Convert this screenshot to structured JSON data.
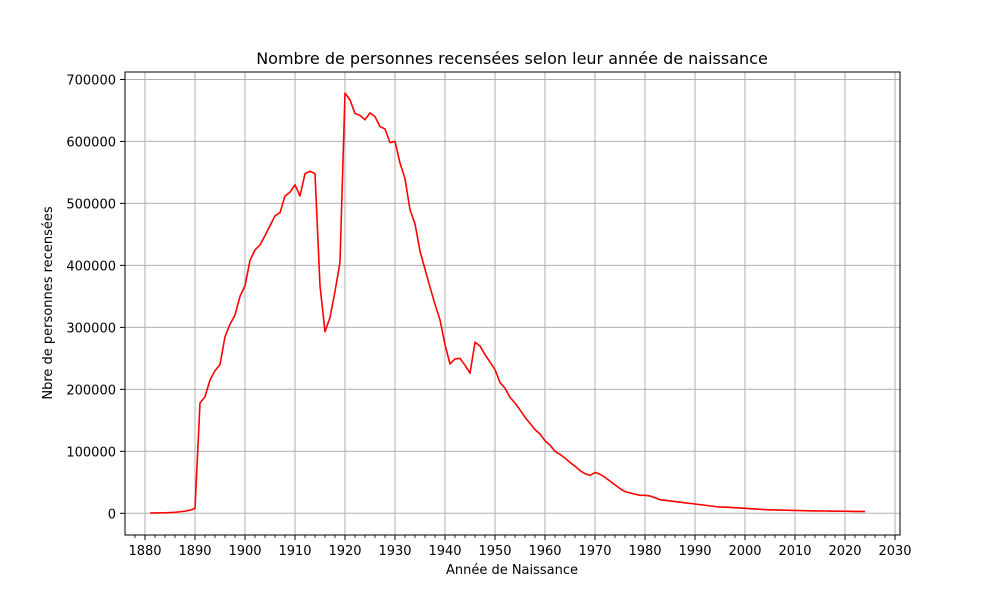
{
  "chart_data": {
    "type": "line",
    "title": "Nombre de personnes recensées selon leur année de naissance",
    "xlabel": "Année de Naissance",
    "ylabel": "Nbre de personnes recensées",
    "xlim": [
      1876,
      2031
    ],
    "ylim": [
      -35000,
      712000
    ],
    "xticks": [
      1880,
      1890,
      1900,
      1910,
      1920,
      1930,
      1940,
      1950,
      1960,
      1970,
      1980,
      1990,
      2000,
      2010,
      2020,
      2030
    ],
    "xtick_labels": [
      "1880",
      "1890",
      "1900",
      "1910",
      "1920",
      "1930",
      "1940",
      "1950",
      "1960",
      "1970",
      "1980",
      "1990",
      "2000",
      "2010",
      "2020",
      "2030"
    ],
    "yticks": [
      0,
      100000,
      200000,
      300000,
      400000,
      500000,
      600000,
      700000
    ],
    "ytick_labels": [
      "0",
      "100000",
      "200000",
      "300000",
      "400000",
      "500000",
      "600000",
      "700000"
    ],
    "grid": true,
    "line_color": "#ff0000",
    "series": [
      {
        "x": [
          1881,
          1882,
          1883,
          1884,
          1885,
          1886,
          1887,
          1888,
          1889,
          1890,
          1891,
          1892,
          1893,
          1894,
          1895,
          1896,
          1897,
          1898,
          1899,
          1900,
          1901,
          1902,
          1903,
          1904,
          1905,
          1906,
          1907,
          1908,
          1909,
          1910,
          1911,
          1912,
          1913,
          1914,
          1915,
          1916,
          1917,
          1918,
          1919,
          1920,
          1921,
          1922,
          1923,
          1924,
          1925,
          1926,
          1927,
          1928,
          1929,
          1930,
          1931,
          1932,
          1933,
          1934,
          1935,
          1936,
          1937,
          1938,
          1939,
          1940,
          1941,
          1942,
          1943,
          1944,
          1945,
          1946,
          1947,
          1948,
          1949,
          1950,
          1951,
          1952,
          1953,
          1954,
          1955,
          1956,
          1957,
          1958,
          1959,
          1960,
          1961,
          1962,
          1963,
          1964,
          1965,
          1966,
          1967,
          1968,
          1969,
          1970,
          1971,
          1972,
          1973,
          1974,
          1975,
          1976,
          1977,
          1978,
          1979,
          1980,
          1981,
          1982,
          1983,
          1984,
          1985,
          1986,
          1987,
          1988,
          1989,
          1990,
          1991,
          1992,
          1993,
          1994,
          1995,
          1996,
          1997,
          1998,
          1999,
          2000,
          2001,
          2002,
          2003,
          2004,
          2005,
          2006,
          2007,
          2008,
          2009,
          2010,
          2011,
          2012,
          2013,
          2014,
          2015,
          2016,
          2017,
          2018,
          2019,
          2020,
          2021,
          2022,
          2023,
          2024
        ],
        "values": [
          500,
          600,
          700,
          900,
          1200,
          1700,
          2500,
          3500,
          5000,
          8000,
          178000,
          188000,
          215000,
          230000,
          240000,
          285000,
          305000,
          320000,
          350000,
          367000,
          408000,
          425000,
          433000,
          448000,
          464000,
          480000,
          485000,
          512000,
          518000,
          530000,
          512000,
          548000,
          552000,
          548000,
          367000,
          293000,
          316000,
          358000,
          405000,
          678000,
          667000,
          645000,
          642000,
          635000,
          646000,
          640000,
          624000,
          620000,
          598000,
          600000,
          565000,
          540000,
          490000,
          467000,
          423000,
          394000,
          365000,
          337000,
          312000,
          272000,
          241000,
          249000,
          250000,
          239000,
          226000,
          276000,
          270000,
          256000,
          244000,
          232000,
          211000,
          202000,
          187000,
          178000,
          167000,
          155000,
          145000,
          135000,
          128000,
          117000,
          110000,
          100000,
          95000,
          89000,
          82000,
          76000,
          69000,
          64000,
          61000,
          66000,
          63000,
          58000,
          52000,
          46000,
          40000,
          35000,
          33000,
          31000,
          29000,
          29000,
          28000,
          25000,
          22000,
          21000,
          20000,
          19000,
          18000,
          17000,
          16000,
          15000,
          14000,
          13000,
          12000,
          11000,
          10000,
          10000,
          9500,
          9000,
          8500,
          8000,
          7500,
          7000,
          6500,
          6000,
          5700,
          5400,
          5200,
          5000,
          4800,
          4600,
          4400,
          4200,
          4000,
          3900,
          3800,
          3700,
          3600,
          3500,
          3400,
          3300,
          3200,
          3100,
          3000,
          2800
        ]
      }
    ]
  }
}
